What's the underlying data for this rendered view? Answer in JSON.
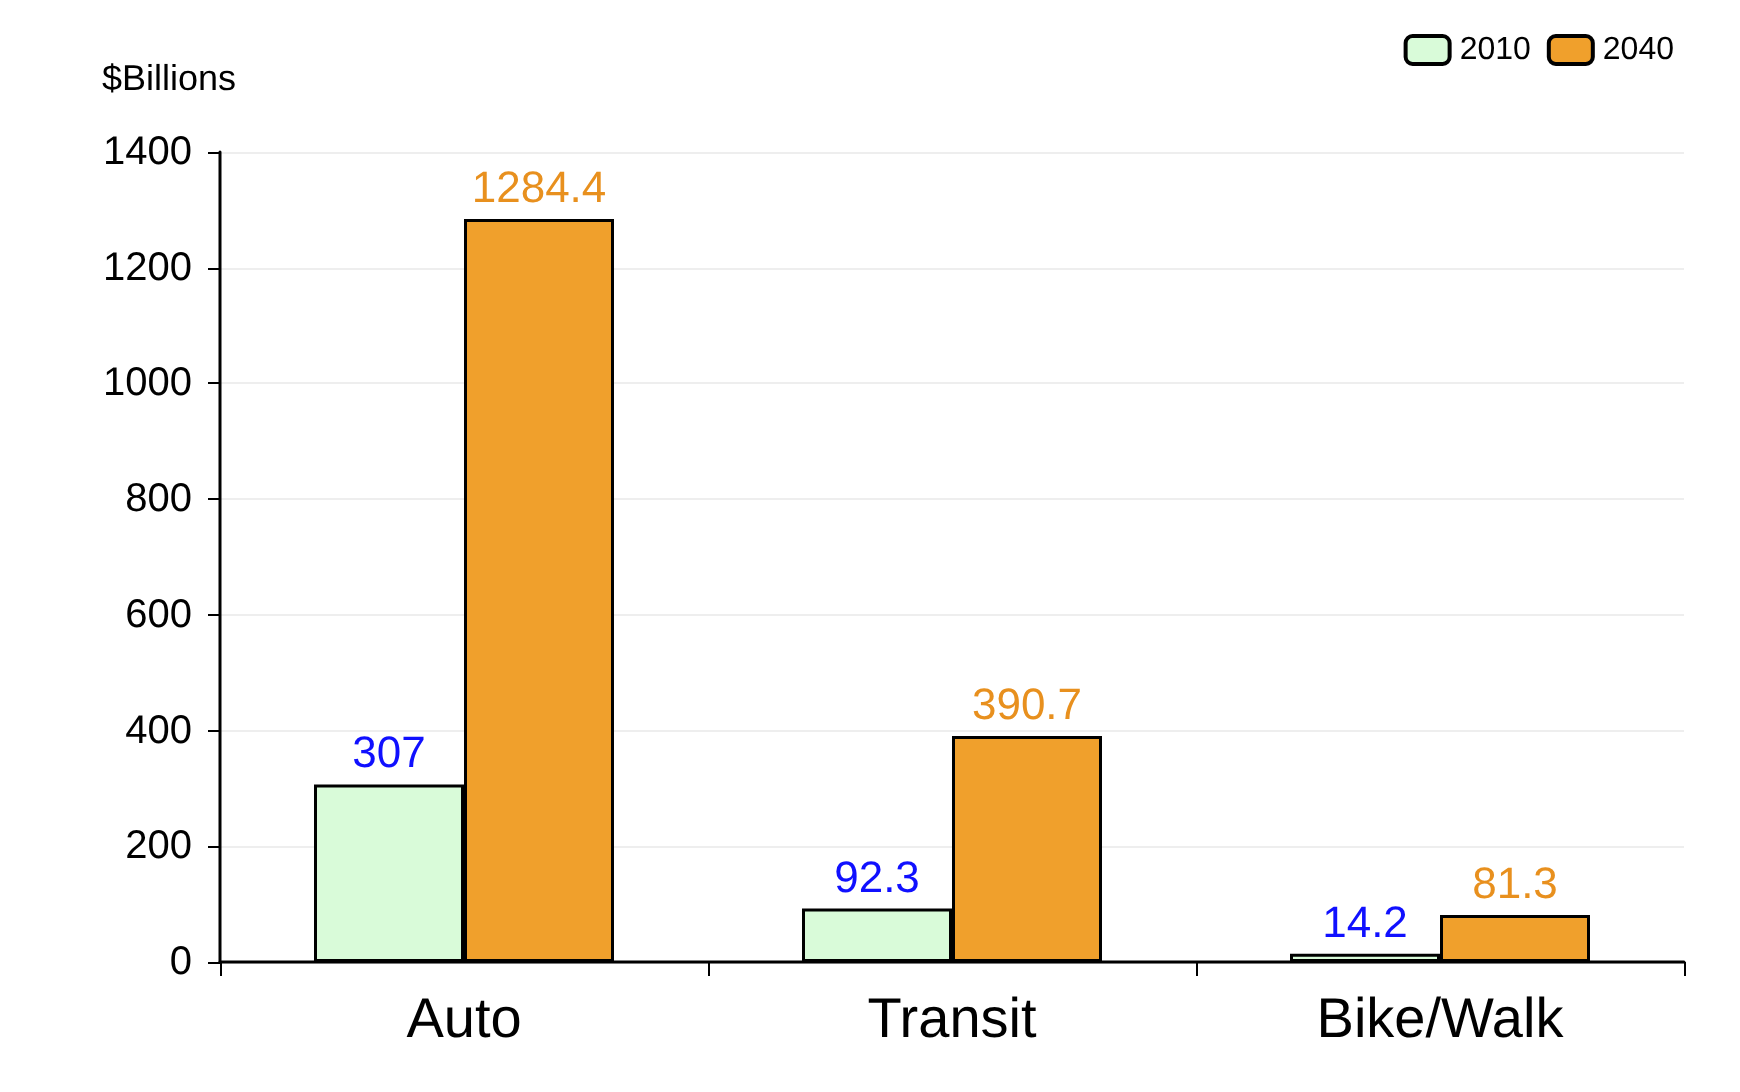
{
  "chart_data": {
    "type": "bar",
    "ylabel": "$Billions",
    "categories": [
      "Auto",
      "Transit",
      "Bike/Walk"
    ],
    "series": [
      {
        "name": "2010",
        "color": "#d9fbd9",
        "values": [
          307,
          92.3,
          14.2
        ]
      },
      {
        "name": "2040",
        "color": "#f0a02c",
        "values": [
          1284.4,
          390.7,
          81.3
        ]
      }
    ],
    "ylim": [
      0,
      1400
    ],
    "yticks": [
      0,
      200,
      400,
      600,
      800,
      1000,
      1200,
      1400
    ],
    "grid": "y",
    "data_labels": true,
    "legend": "top right"
  }
}
